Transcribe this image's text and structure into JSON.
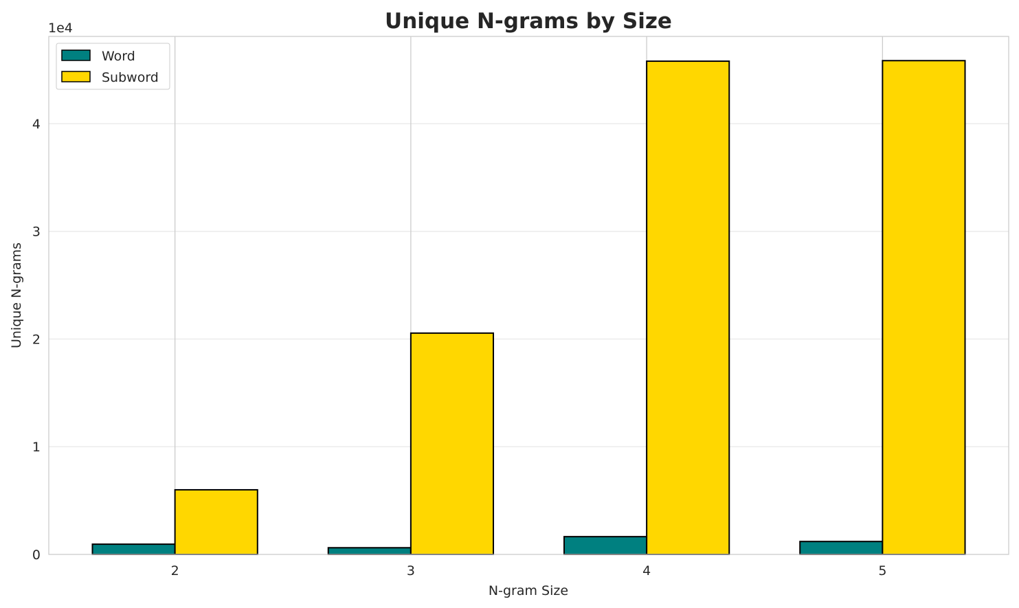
{
  "chart_data": {
    "type": "bar",
    "title": "Unique N-grams by Size",
    "xlabel": "N-gram Size",
    "ylabel": "Unique N-grams",
    "categories": [
      "2",
      "3",
      "4",
      "5"
    ],
    "series": [
      {
        "name": "Word",
        "values": [
          950,
          620,
          1650,
          1200
        ],
        "color": "#008080"
      },
      {
        "name": "Subword",
        "values": [
          6000,
          20550,
          45800,
          45850
        ],
        "color": "#FFD700"
      }
    ],
    "ylim": [
      0,
      48100
    ],
    "yticks": [
      0,
      10000,
      20000,
      30000,
      40000
    ],
    "ytick_labels": [
      "0",
      "1",
      "2",
      "3",
      "4"
    ],
    "y_offset_label": "1e4",
    "grid": true,
    "legend_position": "top-left"
  }
}
